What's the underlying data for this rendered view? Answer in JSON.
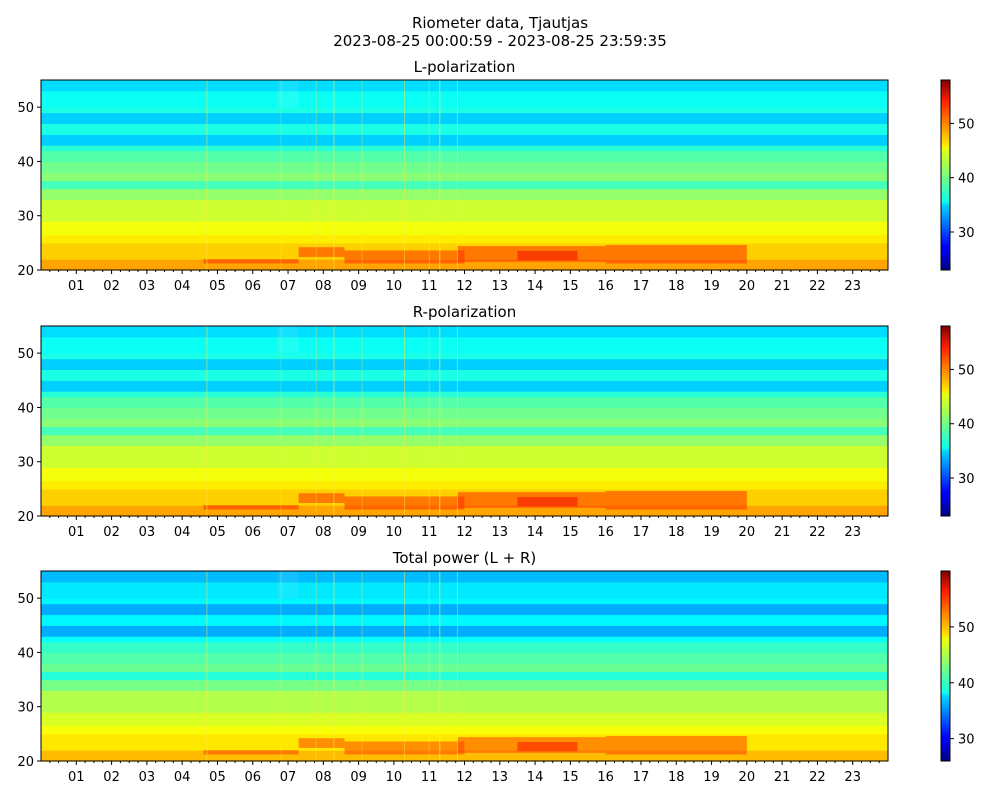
{
  "figure": {
    "title_line1": "Riometer data, Tjautjas",
    "title_line2": "2023-08-25 00:00:59 - 2023-08-25 23:59:35"
  },
  "chart_data": [
    {
      "type": "heatmap",
      "title": "L-polarization",
      "xlabel": "",
      "ylabel": "",
      "x_ticks": [
        "01",
        "02",
        "03",
        "04",
        "05",
        "06",
        "07",
        "08",
        "09",
        "10",
        "11",
        "12",
        "13",
        "14",
        "15",
        "16",
        "17",
        "18",
        "19",
        "20",
        "21",
        "22",
        "23"
      ],
      "xlim_hours": [
        0,
        24
      ],
      "y_ticks": [
        20,
        30,
        40,
        50
      ],
      "ylim": [
        20,
        55
      ],
      "colorbar_ticks": [
        30,
        40,
        50
      ],
      "colorbar_range": [
        23,
        58
      ],
      "colormap": "jet"
    },
    {
      "type": "heatmap",
      "title": "R-polarization",
      "xlabel": "",
      "ylabel": "",
      "x_ticks": [
        "01",
        "02",
        "03",
        "04",
        "05",
        "06",
        "07",
        "08",
        "09",
        "10",
        "11",
        "12",
        "13",
        "14",
        "15",
        "16",
        "17",
        "18",
        "19",
        "20",
        "21",
        "22",
        "23"
      ],
      "xlim_hours": [
        0,
        24
      ],
      "y_ticks": [
        20,
        30,
        40,
        50
      ],
      "ylim": [
        20,
        55
      ],
      "colorbar_ticks": [
        30,
        40,
        50
      ],
      "colorbar_range": [
        23,
        58
      ],
      "colormap": "jet"
    },
    {
      "type": "heatmap",
      "title": "Total power (L + R)",
      "xlabel": "",
      "ylabel": "",
      "x_ticks": [
        "01",
        "02",
        "03",
        "04",
        "05",
        "06",
        "07",
        "08",
        "09",
        "10",
        "11",
        "12",
        "13",
        "14",
        "15",
        "16",
        "17",
        "18",
        "19",
        "20",
        "21",
        "22",
        "23"
      ],
      "xlim_hours": [
        0,
        24
      ],
      "y_ticks": [
        20,
        30,
        40,
        50
      ],
      "ylim": [
        20,
        55
      ],
      "colorbar_ticks": [
        30,
        40,
        50
      ],
      "colorbar_range": [
        26,
        60
      ],
      "colormap": "jet"
    }
  ]
}
